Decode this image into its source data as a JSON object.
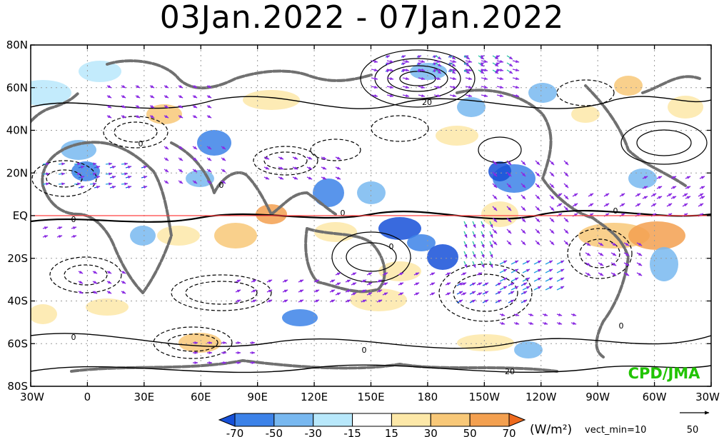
{
  "title": "03Jan.2022 - 07Jan.2022",
  "chart_data": {
    "type": "heatmap",
    "title": "03Jan.2022 - 07Jan.2022",
    "x_ticks": [
      "30W",
      "0",
      "30E",
      "60E",
      "90E",
      "120E",
      "150E",
      "180",
      "150W",
      "120W",
      "90W",
      "60W",
      "30W"
    ],
    "y_ticks": [
      "80N",
      "60N",
      "40N",
      "20N",
      "EQ",
      "20S",
      "40S",
      "60S",
      "80S"
    ],
    "xlim": [
      "30W",
      "30W"
    ],
    "ylim": [
      "80S",
      "80N"
    ],
    "grid": true,
    "colorbar": {
      "ticks": [
        "-70",
        "-50",
        "-30",
        "-15",
        "15",
        "30",
        "50",
        "70"
      ],
      "colors": [
        "#1650d8",
        "#3c82e8",
        "#78b8f0",
        "#b8e8fb",
        "#ffffff",
        "#fde8a8",
        "#f8c878",
        "#f3a050",
        "#ee6a1e"
      ],
      "unit": "(W/m²)"
    },
    "vector_label": "vect_min=10",
    "reference_vector": "50",
    "contour_labels": [
      "0",
      "0",
      "0",
      "0",
      "0",
      "0",
      "0",
      "0",
      "20",
      "20",
      "0"
    ],
    "credit": "CPD/JMA",
    "credit_color": "#21c400",
    "equator_line_color": "#ff4040"
  }
}
